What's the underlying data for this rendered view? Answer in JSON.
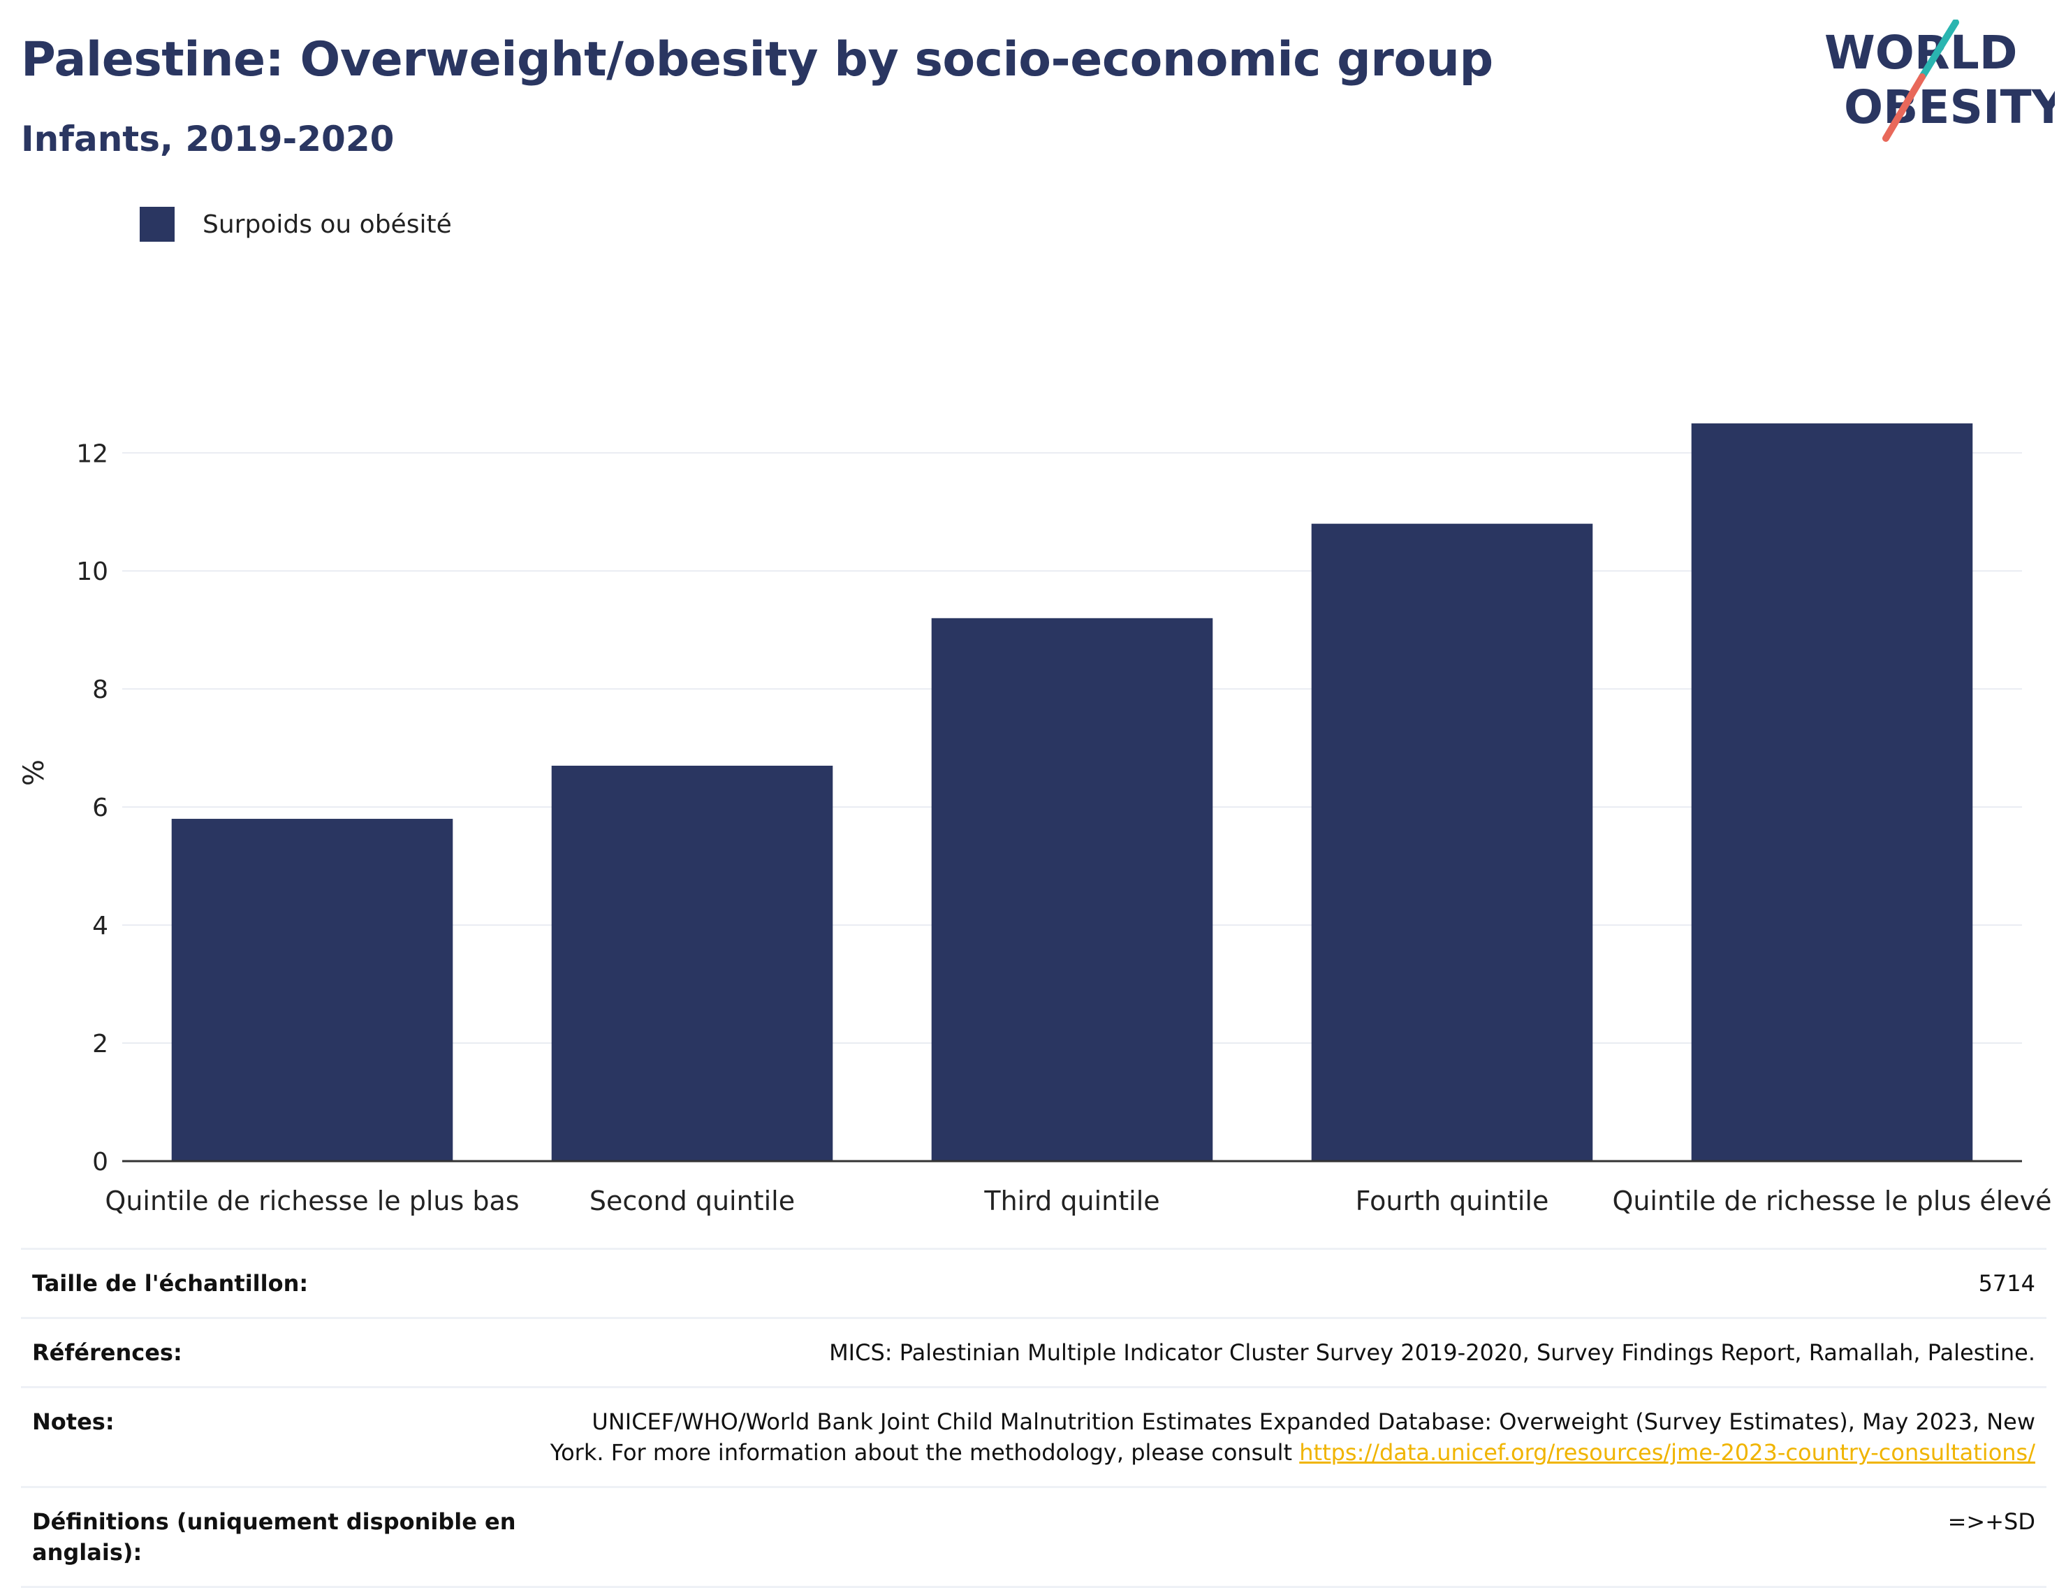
{
  "header": {
    "title": "Palestine: Overweight/obesity by socio-economic group",
    "subtitle": "Infants, 2019-2020"
  },
  "logo": {
    "line1": "WORLD",
    "line2": "OBESITY",
    "colors": {
      "text": "#2a3661",
      "slash_top": "#2ab5b0",
      "slash_bottom": "#e8685a"
    }
  },
  "legend": {
    "label": "Surpoids ou obésité",
    "color": "#2a3661"
  },
  "chart_data": {
    "type": "bar",
    "categories": [
      "Quintile de richesse le plus bas",
      "Second quintile",
      "Third quintile",
      "Fourth quintile",
      "Quintile de richesse le plus élevé"
    ],
    "series": [
      {
        "name": "Surpoids ou obésité",
        "values": [
          5.8,
          6.7,
          9.2,
          10.8,
          12.5
        ],
        "color": "#2a3661"
      }
    ],
    "ylabel": "%",
    "xlabel": "",
    "ylim": [
      0,
      13.4
    ],
    "yticks": [
      0,
      2,
      4,
      6,
      8,
      10,
      12
    ],
    "grid": true,
    "legend_position": "top-left"
  },
  "meta": {
    "sample_label": "Taille de l'échantillon:",
    "sample_value": "5714",
    "references_label": "Références:",
    "references_value": "MICS: Palestinian Multiple Indicator Cluster Survey 2019-2020, Survey Findings Report, Ramallah, Palestine.",
    "notes_label": "Notes:",
    "notes_line1": "UNICEF/WHO/World Bank Joint Child Malnutrition Estimates Expanded Database: Overweight (Survey Estimates), May 2023, New",
    "notes_line2": "York. For more information about the methodology, please consult",
    "notes_link": "https://data.unicef.org/resources/jme-2023-country-consultations/",
    "definitions_label": "Définitions (uniquement disponible en anglais):",
    "definitions_value": "=>+SD"
  }
}
